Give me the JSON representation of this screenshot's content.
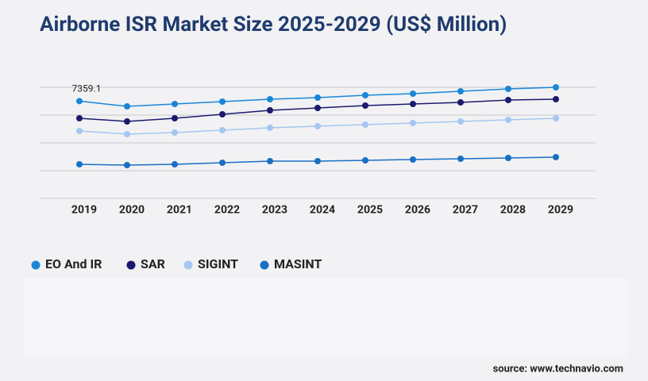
{
  "chart_data": {
    "type": "line",
    "title": "Airborne ISR Market Size 2025-2029 (US$ Million)",
    "categories": [
      "2019",
      "2020",
      "2021",
      "2022",
      "2023",
      "2024",
      "2025",
      "2026",
      "2027",
      "2028",
      "2029"
    ],
    "series": [
      {
        "name": "EO And IR",
        "color": "#1a86d6",
        "values": [
          7359.1,
          6960,
          7140,
          7320,
          7500,
          7620,
          7800,
          7920,
          8100,
          8280,
          8400
        ]
      },
      {
        "name": "SAR",
        "color": "#1c1a6e",
        "values": [
          6060,
          5820,
          6060,
          6360,
          6660,
          6840,
          7020,
          7140,
          7260,
          7440,
          7500
        ]
      },
      {
        "name": "SIGINT",
        "color": "#a6c6f2",
        "values": [
          5100,
          4860,
          4980,
          5160,
          5340,
          5460,
          5580,
          5700,
          5820,
          5940,
          6060
        ]
      },
      {
        "name": "MASINT",
        "color": "#1a6fc4",
        "values": [
          2580,
          2520,
          2580,
          2700,
          2820,
          2820,
          2880,
          2940,
          3000,
          3060,
          3120
        ]
      }
    ],
    "ylim": [
      0,
      8400
    ],
    "yticks": [
      0,
      2100,
      4200,
      6300,
      8400
    ],
    "grid": true,
    "source": "source: www.technavio.com"
  }
}
